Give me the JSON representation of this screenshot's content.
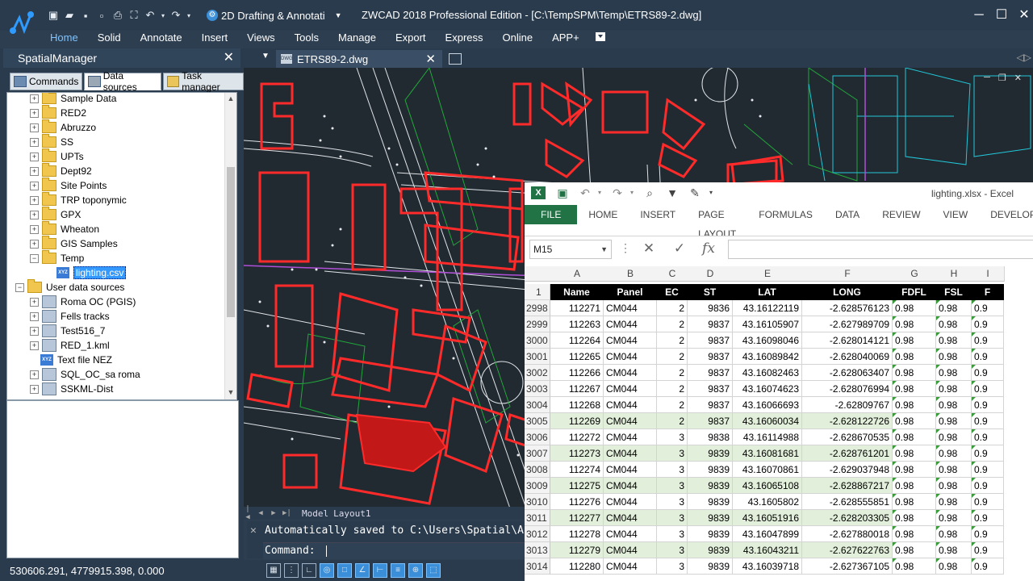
{
  "app": {
    "workspace": "2D Drafting & Annotati",
    "title": "ZWCAD 2018 Professional Edition - [C:\\TempSPM\\Temp\\ETRS89-2.dwg]"
  },
  "ribbon": [
    "Home",
    "Solid",
    "Annotate",
    "Insert",
    "Views",
    "Tools",
    "Manage",
    "Export",
    "Express",
    "Online",
    "APP+"
  ],
  "panel": {
    "title": "SpatialManager",
    "tabs": [
      "Commands",
      "Data sources",
      "Task manager"
    ],
    "tree": [
      {
        "label": "Sample Data",
        "level": 1,
        "type": "folder"
      },
      {
        "label": "RED2",
        "level": 1,
        "type": "folder"
      },
      {
        "label": "Abruzzo",
        "level": 1,
        "type": "folder"
      },
      {
        "label": "SS",
        "level": 1,
        "type": "folder"
      },
      {
        "label": "UPTs",
        "level": 1,
        "type": "folder"
      },
      {
        "label": "Dept92",
        "level": 1,
        "type": "folder"
      },
      {
        "label": "Site Points",
        "level": 1,
        "type": "folder"
      },
      {
        "label": "TRP toponymic",
        "level": 1,
        "type": "folder"
      },
      {
        "label": "GPX",
        "level": 1,
        "type": "folder"
      },
      {
        "label": "Wheaton",
        "level": 1,
        "type": "folder"
      },
      {
        "label": "GIS Samples",
        "level": 1,
        "type": "folder"
      },
      {
        "label": "Temp",
        "level": 1,
        "type": "folder-open"
      },
      {
        "label": "lighting.csv",
        "level": 2,
        "type": "file",
        "selected": true
      },
      {
        "label": "User data sources",
        "level": 0,
        "type": "user"
      },
      {
        "label": "Roma OC (PGIS)",
        "level": 1,
        "type": "ds"
      },
      {
        "label": "Fells tracks",
        "level": 1,
        "type": "ds"
      },
      {
        "label": "Test516_7",
        "level": 1,
        "type": "ds"
      },
      {
        "label": "RED_1.kml",
        "level": 1,
        "type": "ds"
      },
      {
        "label": "Text file NEZ",
        "level": 1,
        "type": "file"
      },
      {
        "label": "SQL_OC_sa roma",
        "level": 1,
        "type": "ds"
      },
      {
        "label": "SSKML-Dist",
        "level": 1,
        "type": "ds"
      }
    ]
  },
  "document": {
    "tab": "ETRS89-2.dwg",
    "layouts": [
      "Model",
      "Layout1"
    ],
    "command_history": "Automatically saved to C:\\Users\\Spatial\\AppDat",
    "command_prompt": "Command:"
  },
  "status": {
    "coords": "530606.291, 4779915.398, 0.000"
  },
  "excel": {
    "title": "lighting.xlsx - Excel",
    "tabs": [
      "FILE",
      "HOME",
      "INSERT",
      "PAGE LAYOUT",
      "FORMULAS",
      "DATA",
      "REVIEW",
      "VIEW",
      "DEVELOP"
    ],
    "namebox": "M15",
    "columns": [
      "A",
      "B",
      "C",
      "D",
      "E",
      "F",
      "G",
      "H",
      "I"
    ],
    "header_row": "1",
    "headers": [
      "Name",
      "Panel",
      "EC",
      "ST",
      "LAT",
      "LONG",
      "FDFL",
      "FSL",
      "F"
    ],
    "rows": [
      {
        "n": "2998",
        "v": [
          "112271",
          "CM044",
          "2",
          "9836",
          "43.16122119",
          "-2.628576123",
          "0.98",
          "0.98",
          "0.9"
        ]
      },
      {
        "n": "2999",
        "v": [
          "112263",
          "CM044",
          "2",
          "9837",
          "43.16105907",
          "-2.627989709",
          "0.98",
          "0.98",
          "0.9"
        ]
      },
      {
        "n": "3000",
        "v": [
          "112264",
          "CM044",
          "2",
          "9837",
          "43.16098046",
          "-2.628014121",
          "0.98",
          "0.98",
          "0.9"
        ]
      },
      {
        "n": "3001",
        "v": [
          "112265",
          "CM044",
          "2",
          "9837",
          "43.16089842",
          "-2.628040069",
          "0.98",
          "0.98",
          "0.9"
        ]
      },
      {
        "n": "3002",
        "v": [
          "112266",
          "CM044",
          "2",
          "9837",
          "43.16082463",
          "-2.628063407",
          "0.98",
          "0.98",
          "0.9"
        ]
      },
      {
        "n": "3003",
        "v": [
          "112267",
          "CM044",
          "2",
          "9837",
          "43.16074623",
          "-2.628076994",
          "0.98",
          "0.98",
          "0.9"
        ]
      },
      {
        "n": "3004",
        "v": [
          "112268",
          "CM044",
          "2",
          "9837",
          "43.16066693",
          "-2.62809767",
          "0.98",
          "0.98",
          "0.9"
        ]
      },
      {
        "n": "3005",
        "v": [
          "112269",
          "CM044",
          "2",
          "9837",
          "43.16060034",
          "-2.628122726",
          "0.98",
          "0.98",
          "0.9"
        ],
        "band": true
      },
      {
        "n": "3006",
        "v": [
          "112272",
          "CM044",
          "3",
          "9838",
          "43.16114988",
          "-2.628670535",
          "0.98",
          "0.98",
          "0.9"
        ]
      },
      {
        "n": "3007",
        "v": [
          "112273",
          "CM044",
          "3",
          "9839",
          "43.16081681",
          "-2.628761201",
          "0.98",
          "0.98",
          "0.9"
        ],
        "band": true
      },
      {
        "n": "3008",
        "v": [
          "112274",
          "CM044",
          "3",
          "9839",
          "43.16070861",
          "-2.629037948",
          "0.98",
          "0.98",
          "0.9"
        ]
      },
      {
        "n": "3009",
        "v": [
          "112275",
          "CM044",
          "3",
          "9839",
          "43.16065108",
          "-2.628867217",
          "0.98",
          "0.98",
          "0.9"
        ],
        "band": true
      },
      {
        "n": "3010",
        "v": [
          "112276",
          "CM044",
          "3",
          "9839",
          "43.1605802",
          "-2.628555851",
          "0.98",
          "0.98",
          "0.9"
        ]
      },
      {
        "n": "3011",
        "v": [
          "112277",
          "CM044",
          "3",
          "9839",
          "43.16051916",
          "-2.628203305",
          "0.98",
          "0.98",
          "0.9"
        ],
        "band": true
      },
      {
        "n": "3012",
        "v": [
          "112278",
          "CM044",
          "3",
          "9839",
          "43.16047899",
          "-2.627880018",
          "0.98",
          "0.98",
          "0.9"
        ]
      },
      {
        "n": "3013",
        "v": [
          "112279",
          "CM044",
          "3",
          "9839",
          "43.16043211",
          "-2.627622763",
          "0.98",
          "0.98",
          "0.9"
        ],
        "band": true
      },
      {
        "n": "3014",
        "v": [
          "112280",
          "CM044",
          "3",
          "9839",
          "43.16039718",
          "-2.627367105",
          "0.98",
          "0.98",
          "0.9"
        ]
      }
    ]
  }
}
